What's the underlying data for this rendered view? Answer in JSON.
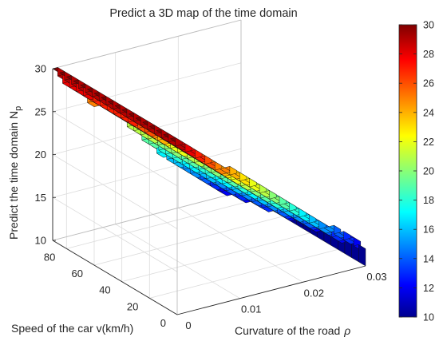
{
  "chart_data": {
    "type": "surface3d",
    "title": "Predict a 3D map of the time domain",
    "xlabel": "Curvature of the road",
    "xlabel_symbol": "ρ",
    "ylabel": "Speed of the car v(km/h)",
    "zlabel": "Predict the time domain N",
    "zlabel_subscript": "p",
    "xlim": [
      0,
      0.03
    ],
    "ylim": [
      0,
      90
    ],
    "zlim": [
      10,
      30
    ],
    "x_ticks": [
      "0",
      "0.01",
      "0.02",
      "0.03"
    ],
    "y_ticks": [
      "0",
      "20",
      "40",
      "60",
      "80"
    ],
    "z_ticks": [
      "10",
      "15",
      "20",
      "25",
      "30"
    ],
    "grid": true,
    "shading": "faceted",
    "surface": {
      "curvature": [
        0,
        0.005,
        0.01,
        0.015,
        0.02,
        0.025,
        0.03
      ],
      "speed": [
        0,
        15,
        30,
        45,
        60,
        75,
        90
      ],
      "Np_at_min_speed": [
        30,
        27,
        24,
        21,
        18,
        15,
        12
      ],
      "Np_at_max_speed": [
        30,
        26,
        23,
        19,
        15,
        12,
        10
      ]
    },
    "colorbar": {
      "min": 10,
      "max": 30,
      "ticks": [
        "10",
        "12",
        "14",
        "16",
        "18",
        "20",
        "22",
        "24",
        "26",
        "28",
        "30"
      ],
      "colormap": "jet",
      "colormap_stops": [
        "#00008f",
        "#0000ff",
        "#00ffff",
        "#ffff00",
        "#ff0000",
        "#800000"
      ]
    }
  }
}
